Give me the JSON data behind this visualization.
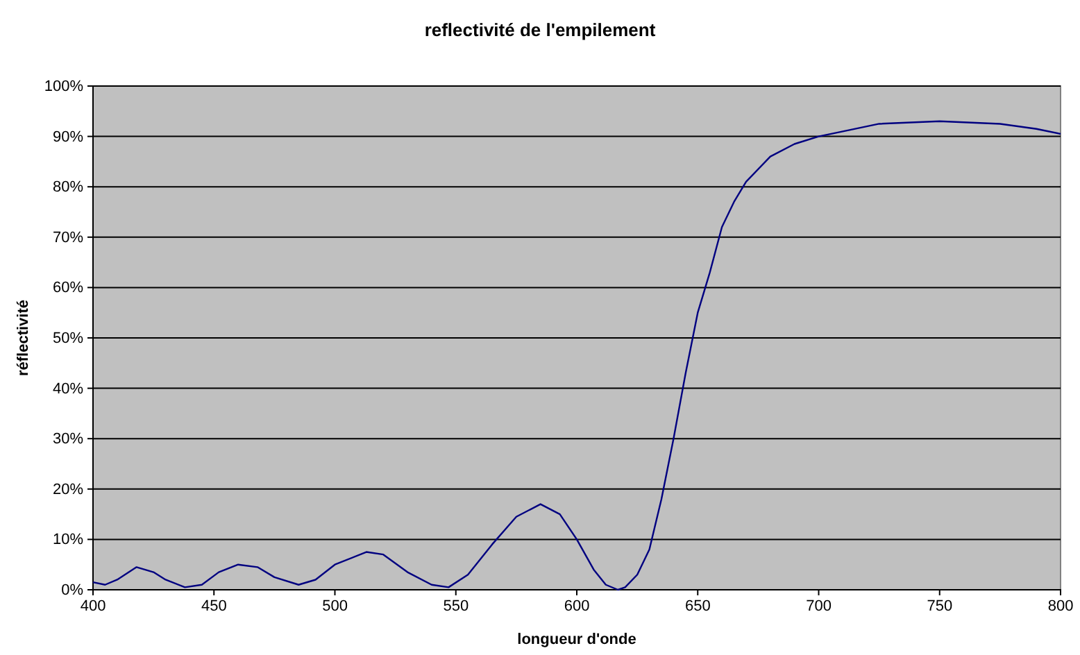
{
  "chart_data": {
    "type": "line",
    "title": "reflectivité de l'empilement",
    "xlabel": "longueur d'onde",
    "ylabel": "réflectivité",
    "x": [
      400,
      405,
      410,
      418,
      425,
      430,
      438,
      445,
      452,
      460,
      468,
      475,
      485,
      492,
      500,
      513,
      520,
      530,
      540,
      547,
      555,
      565,
      575,
      585,
      593,
      600,
      607,
      612,
      617,
      620,
      625,
      630,
      635,
      640,
      645,
      650,
      655,
      660,
      665,
      670,
      680,
      690,
      700,
      710,
      725,
      750,
      775,
      790,
      800
    ],
    "series": [
      {
        "color": "#000080",
        "values": [
          1.5,
          1,
          2,
          4.5,
          3.5,
          2,
          0.5,
          1,
          3.5,
          5,
          4.5,
          2.5,
          1,
          2,
          5,
          7.5,
          7,
          3.5,
          1,
          0.5,
          3,
          9,
          14.5,
          17,
          15,
          10,
          4,
          1,
          0,
          0.5,
          3,
          8,
          18,
          30,
          43,
          55,
          63,
          72,
          77,
          81,
          86,
          88.5,
          90,
          91,
          92.5,
          93,
          92.5,
          91.5,
          90.5
        ]
      }
    ],
    "xlim": [
      400,
      800
    ],
    "xticks": [
      400,
      450,
      500,
      550,
      600,
      650,
      700,
      750,
      800
    ],
    "ylim": [
      0,
      100
    ],
    "yticks": [
      {
        "value": 0,
        "label": "0%"
      },
      {
        "value": 10,
        "label": "10%"
      },
      {
        "value": 20,
        "label": "20%"
      },
      {
        "value": 30,
        "label": "30%"
      },
      {
        "value": 40,
        "label": "40%"
      },
      {
        "value": 50,
        "label": "50%"
      },
      {
        "value": 60,
        "label": "60%"
      },
      {
        "value": 70,
        "label": "70%"
      },
      {
        "value": 80,
        "label": "80%"
      },
      {
        "value": 90,
        "label": "90%"
      },
      {
        "value": 100,
        "label": "100%"
      }
    ],
    "grid": "y",
    "marker": "none",
    "line_style": "solid"
  }
}
